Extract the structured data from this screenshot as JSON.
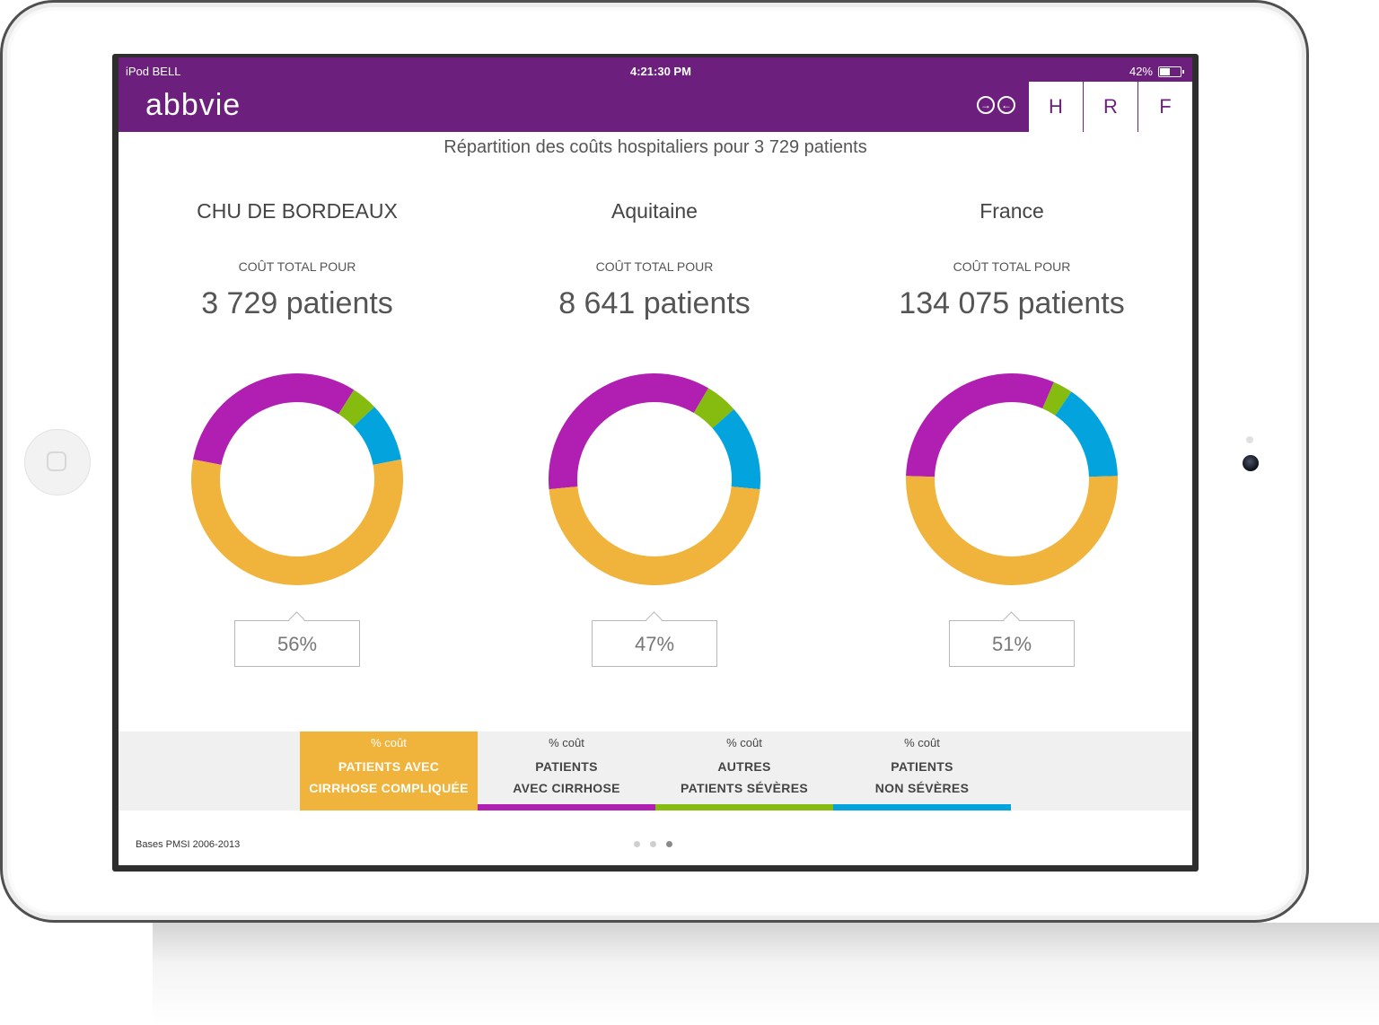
{
  "status_bar": {
    "carrier": "iPod BELL",
    "time": "4:21:30 PM",
    "battery": "42%"
  },
  "header": {
    "logo": "abbvie",
    "tabs": [
      "H",
      "R",
      "F"
    ]
  },
  "subtitle": "Répartition des coûts hospitaliers pour 3 729 patients",
  "colors": {
    "purple": "#b01fb1",
    "green": "#86bb0f",
    "blue": "#03a4dd",
    "orange": "#f0b33b",
    "brand": "#6c1f7d"
  },
  "panels": [
    {
      "name": "CHU DE BORDEAUX",
      "label": "COÛT TOTAL POUR",
      "count": "3 729 patients",
      "highlight": "56%"
    },
    {
      "name": "Aquitaine",
      "label": "COÛT TOTAL POUR",
      "count": "8 641 patients",
      "highlight": "47%"
    },
    {
      "name": "France",
      "label": "COÛT TOTAL POUR",
      "count": "134 075 patients",
      "highlight": "51%"
    }
  ],
  "legend": [
    {
      "pct_label": "% coût",
      "line1": "PATIENTS AVEC",
      "line2": "CIRRHOSE COMPLIQUÉE"
    },
    {
      "pct_label": "% coût",
      "line1": "PATIENTS",
      "line2": "AVEC CIRRHOSE"
    },
    {
      "pct_label": "% coût",
      "line1": "AUTRES",
      "line2": "PATIENTS SÉVÈRES"
    },
    {
      "pct_label": "% coût",
      "line1": "PATIENTS",
      "line2": "NON SÉVÈRES"
    }
  ],
  "footer": {
    "source": "Bases PMSI 2006-2013"
  },
  "pagination": {
    "total": 3,
    "current": 3
  },
  "chart_data": [
    {
      "type": "pie",
      "categories": [
        "PATIENTS AVEC CIRRHOSE COMPLIQUÉE",
        "PATIENTS AVEC CIRRHOSE",
        "AUTRES PATIENTS SÉVÈRES",
        "PATIENTS NON SÉVÈRES"
      ],
      "values": [
        56,
        31,
        4,
        9
      ]
    },
    {
      "type": "pie",
      "categories": [
        "PATIENTS AVEC CIRRHOSE COMPLIQUÉE",
        "PATIENTS AVEC CIRRHOSE",
        "AUTRES PATIENTS SÉVÈRES",
        "PATIENTS NON SÉVÈRES"
      ],
      "values": [
        47,
        35,
        5,
        13
      ]
    },
    {
      "type": "pie",
      "categories": [
        "PATIENTS AVEC CIRRHOSE COMPLIQUÉE",
        "PATIENTS AVEC CIRRHOSE",
        "AUTRES PATIENTS SÉVÈRES",
        "PATIENTS NON SÉVÈRES"
      ],
      "values": [
        51,
        31,
        3,
        15
      ]
    }
  ]
}
